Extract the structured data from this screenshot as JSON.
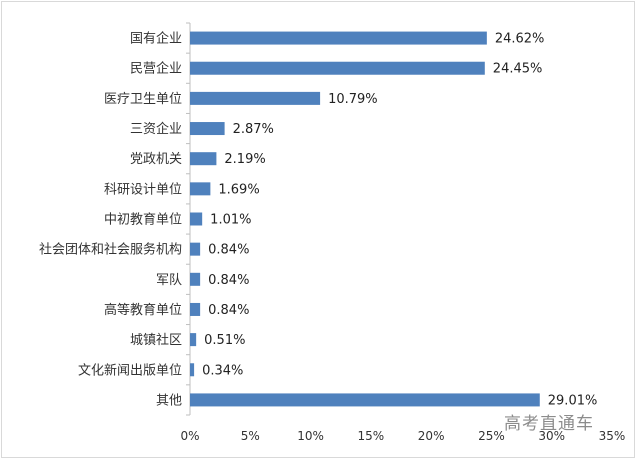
{
  "chart_data": {
    "type": "bar",
    "orientation": "horizontal",
    "categories": [
      "国有企业",
      "民营企业",
      "医疗卫生单位",
      "三资企业",
      "党政机关",
      "科研设计单位",
      "中初教育单位",
      "社会团体和社会服务机构",
      "军队",
      "高等教育单位",
      "城镇社区",
      "文化新闻出版单位",
      "其他"
    ],
    "values": [
      24.62,
      24.45,
      10.79,
      2.87,
      2.19,
      1.69,
      1.01,
      0.84,
      0.84,
      0.84,
      0.51,
      0.34,
      29.01
    ],
    "value_labels": [
      "24.62%",
      "24.45%",
      "10.79%",
      "2.87%",
      "2.19%",
      "1.69%",
      "1.01%",
      "0.84%",
      "0.84%",
      "0.84%",
      "0.51%",
      "0.34%",
      "29.01%"
    ],
    "xlim": [
      0,
      35
    ],
    "x_ticks": [
      "0%",
      "5%",
      "10%",
      "15%",
      "20%",
      "25%",
      "30%",
      "35%"
    ],
    "bar_color": "#4f81bd",
    "grid": false
  },
  "watermark": "高考直通车"
}
